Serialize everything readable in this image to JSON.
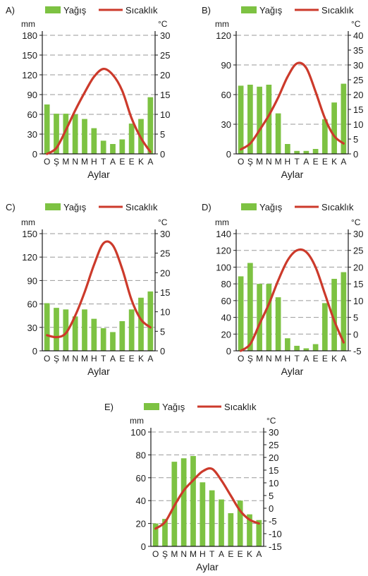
{
  "legend": {
    "precip_label": "Yağış",
    "temp_label": "Sıcaklık"
  },
  "colors": {
    "bar": "#7dc242",
    "line": "#cc3a2b",
    "grid": "#9a9a9a",
    "axis": "#1a1a1a"
  },
  "chart_data": [
    {
      "type": "bar",
      "panel_label": "A)",
      "left_unit": "mm",
      "right_unit": "°C",
      "xlabel": "Aylar",
      "categories": [
        "O",
        "Ş",
        "M",
        "N",
        "M",
        "H",
        "T",
        "A",
        "E",
        "E",
        "K",
        "A"
      ],
      "left_ticks": [
        0,
        30,
        60,
        90,
        120,
        150,
        180
      ],
      "right_ticks": [
        0,
        5,
        10,
        15,
        20,
        25,
        30
      ],
      "ylim": [
        0,
        180
      ],
      "y2lim": [
        0,
        30
      ],
      "series": [
        {
          "name": "Yağış",
          "axis": "left",
          "values": [
            75,
            61,
            61,
            60,
            53,
            39,
            20,
            15,
            22,
            46,
            53,
            86
          ]
        },
        {
          "name": "Sıcaklık",
          "axis": "right",
          "values": [
            0,
            1.5,
            6,
            11,
            15.5,
            19.5,
            21.5,
            20,
            16,
            9,
            4,
            0.5
          ]
        }
      ]
    },
    {
      "type": "bar",
      "panel_label": "B)",
      "left_unit": "mm",
      "right_unit": "°C",
      "xlabel": "Aylar",
      "categories": [
        "O",
        "Ş",
        "M",
        "N",
        "M",
        "H",
        "T",
        "A",
        "E",
        "E",
        "K",
        "A"
      ],
      "left_ticks": [
        0,
        30,
        60,
        90,
        120
      ],
      "right_ticks": [
        0,
        5,
        10,
        15,
        20,
        25,
        30,
        35,
        40
      ],
      "ylim": [
        0,
        120
      ],
      "y2lim": [
        0,
        40
      ],
      "series": [
        {
          "name": "Yağış",
          "axis": "left",
          "values": [
            69,
            70,
            68,
            70,
            41,
            10,
            3,
            3,
            5,
            35,
            52,
            71
          ]
        },
        {
          "name": "Sıcaklık",
          "axis": "right",
          "values": [
            1.5,
            3.5,
            8,
            13,
            19,
            26,
            30.5,
            29,
            21,
            12,
            6,
            3.5
          ]
        }
      ]
    },
    {
      "type": "bar",
      "panel_label": "C)",
      "left_unit": "mm",
      "right_unit": "°C",
      "xlabel": "Aylar",
      "categories": [
        "O",
        "Ş",
        "M",
        "N",
        "M",
        "H",
        "T",
        "A",
        "E",
        "E",
        "K",
        "A"
      ],
      "left_ticks": [
        0,
        30,
        60,
        90,
        120,
        150
      ],
      "right_ticks": [
        0,
        5,
        10,
        15,
        20,
        25,
        30
      ],
      "ylim": [
        0,
        150
      ],
      "y2lim": [
        0,
        30
      ],
      "series": [
        {
          "name": "Yağış",
          "axis": "left",
          "values": [
            61,
            55,
            53,
            44,
            53,
            41,
            29,
            24,
            38,
            53,
            68,
            76
          ]
        },
        {
          "name": "Sıcaklık",
          "axis": "right",
          "values": [
            4,
            3.5,
            4.5,
            9,
            15,
            22,
            27.5,
            27,
            21,
            13,
            8,
            6
          ]
        }
      ]
    },
    {
      "type": "bar",
      "panel_label": "D)",
      "left_unit": "mm",
      "right_unit": "°C",
      "xlabel": "Aylar",
      "categories": [
        "O",
        "Ş",
        "M",
        "N",
        "M",
        "H",
        "T",
        "A",
        "E",
        "E",
        "K",
        "A"
      ],
      "left_ticks": [
        0,
        20,
        40,
        60,
        80,
        100,
        120,
        140
      ],
      "right_ticks": [
        -5,
        0,
        5,
        10,
        15,
        20,
        25,
        30
      ],
      "ylim": [
        0,
        140
      ],
      "y2lim": [
        -5,
        30
      ],
      "series": [
        {
          "name": "Yağış",
          "axis": "left",
          "values": [
            89,
            105,
            80,
            80,
            64,
            15,
            6,
            3,
            8,
            57,
            86,
            94
          ]
        },
        {
          "name": "Sıcaklık",
          "axis": "right",
          "values": [
            -5,
            -3,
            3,
            9,
            16,
            22,
            25,
            24.5,
            20,
            12,
            4,
            -2.5
          ]
        }
      ]
    },
    {
      "type": "bar",
      "panel_label": "E)",
      "left_unit": "mm",
      "right_unit": "°C",
      "xlabel": "Aylar",
      "categories": [
        "O",
        "Ş",
        "M",
        "N",
        "M",
        "H",
        "T",
        "A",
        "E",
        "E",
        "K",
        "A"
      ],
      "left_ticks": [
        0,
        20,
        40,
        60,
        80,
        100
      ],
      "right_ticks": [
        -15,
        -10,
        -5,
        0,
        5,
        10,
        15,
        20,
        25,
        30
      ],
      "ylim": [
        0,
        100
      ],
      "y2lim": [
        -15,
        30
      ],
      "series": [
        {
          "name": "Yağış",
          "axis": "left",
          "values": [
            20,
            24,
            74,
            77,
            79,
            56,
            49,
            41,
            29,
            40,
            28,
            23
          ]
        },
        {
          "name": "Sıcaklık",
          "axis": "right",
          "values": [
            -8,
            -5.5,
            1,
            7,
            11,
            14.5,
            15.5,
            11,
            5,
            -1,
            -4.5,
            -6
          ]
        }
      ]
    }
  ]
}
